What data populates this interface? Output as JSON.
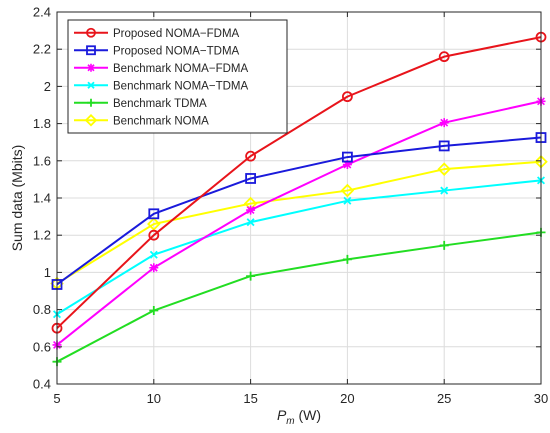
{
  "chart_data": {
    "type": "line",
    "x": [
      5,
      10,
      15,
      20,
      25,
      30
    ],
    "xlim": [
      5,
      30
    ],
    "ylim": [
      0.4,
      2.4
    ],
    "xticks": [
      "5",
      "10",
      "15",
      "20",
      "25",
      "30"
    ],
    "yticks": [
      "0.4",
      "0.6",
      "0.8",
      "1",
      "1.2",
      "1.4",
      "1.6",
      "1.8",
      "2",
      "2.2",
      "2.4"
    ],
    "xlabel_main": "P",
    "xlabel_sub": "m",
    "xlabel_unit": " (W)",
    "ylabel": "Sum data (Mbits)",
    "grid": true,
    "legend_position": "top-left",
    "series": [
      {
        "name": "Proposed NOMA−FDMA",
        "color": "#e8141b",
        "marker": "circle",
        "values": [
          0.7,
          1.2,
          1.625,
          1.945,
          2.16,
          2.265
        ]
      },
      {
        "name": "Proposed NOMA−TDMA",
        "color": "#1a1adb",
        "marker": "square",
        "values": [
          0.935,
          1.315,
          1.505,
          1.62,
          1.68,
          1.725
        ]
      },
      {
        "name": "Benchmark NOMA−FDMA",
        "color": "#ff00ff",
        "marker": "asterisk",
        "values": [
          0.61,
          1.025,
          1.335,
          1.58,
          1.805,
          1.92
        ]
      },
      {
        "name": "Benchmark NOMA−TDMA",
        "color": "#00ffff",
        "marker": "x",
        "values": [
          0.775,
          1.095,
          1.27,
          1.385,
          1.44,
          1.495
        ]
      },
      {
        "name": "Benchmark TDMA",
        "color": "#22dd22",
        "marker": "plus",
        "values": [
          0.52,
          0.795,
          0.98,
          1.07,
          1.145,
          1.215
        ]
      },
      {
        "name": "Benchmark NOMA",
        "color": "#ffff00",
        "marker": "diamond",
        "values": [
          0.94,
          1.26,
          1.37,
          1.44,
          1.555,
          1.595
        ]
      }
    ]
  }
}
